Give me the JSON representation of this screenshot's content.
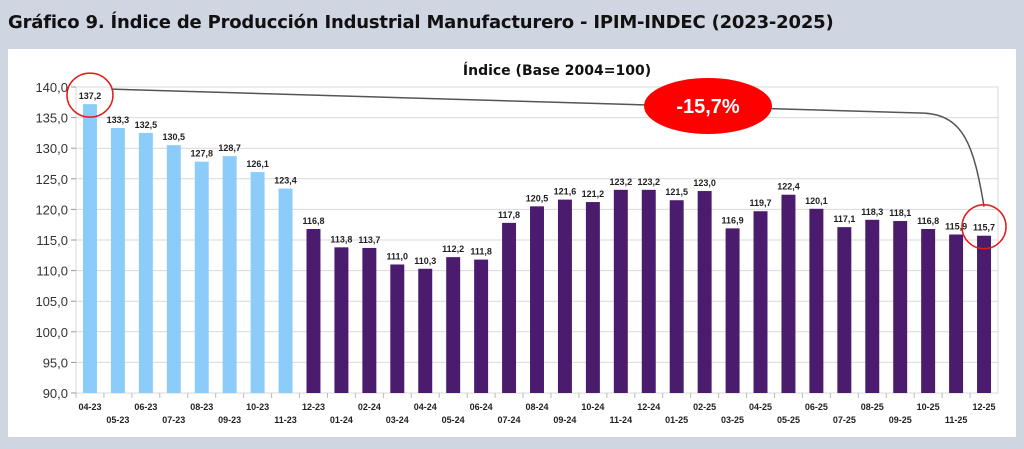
{
  "header": {
    "title": "Gráfico 9. Índice de Producción Industrial Manufacturero - IPIM-INDEC (2023-2025)"
  },
  "colors": {
    "bar_2023": "#8cccfa",
    "bar_2024_2025": "#4b1c6e",
    "callout": "#ff0000",
    "header_bg": "#cfd5e1"
  },
  "chart_data": {
    "type": "bar",
    "title": "Índice (Base 2004=100)",
    "xlabel": "",
    "ylabel": "",
    "ylim": [
      90,
      140
    ],
    "yticks": [
      90,
      95,
      100,
      105,
      110,
      115,
      120,
      125,
      130,
      135,
      140
    ],
    "ytick_labels": [
      "90,0",
      "95,0",
      "100,0",
      "105,0",
      "110,0",
      "115,0",
      "120,0",
      "125,0",
      "130,0",
      "135,0",
      "140,0"
    ],
    "grid": true,
    "legend": "none",
    "categories": [
      "04-23",
      "05-23",
      "06-23",
      "07-23",
      "08-23",
      "09-23",
      "10-23",
      "11-23",
      "12-23",
      "01-24",
      "02-24",
      "03-24",
      "04-24",
      "05-24",
      "06-24",
      "07-24",
      "08-24",
      "09-24",
      "10-24",
      "11-24",
      "12-24",
      "01-25",
      "02-25",
      "03-25",
      "04-25",
      "05-25",
      "06-25",
      "07-25",
      "08-25",
      "09-25",
      "10-25",
      "11-25",
      "12-25"
    ],
    "values": [
      137.2,
      133.3,
      132.5,
      130.5,
      127.8,
      128.7,
      126.1,
      123.4,
      116.8,
      113.8,
      113.7,
      111.0,
      110.3,
      112.2,
      111.8,
      117.8,
      120.5,
      121.6,
      121.2,
      123.2,
      123.2,
      121.5,
      123.0,
      116.9,
      119.7,
      122.4,
      120.1,
      117.1,
      118.3,
      118.1,
      116.8,
      115.9,
      115.7
    ],
    "value_labels": [
      "137,2",
      "133,3",
      "132,5",
      "130,5",
      "127,8",
      "128,7",
      "126,1",
      "123,4",
      "116,8",
      "113,8",
      "113,7",
      "111,0",
      "110,3",
      "112,2",
      "111,8",
      "117,8",
      "120,5",
      "121,6",
      "121,2",
      "123,2",
      "123,2",
      "121,5",
      "123,0",
      "116,9",
      "119,7",
      "122,4",
      "120,1",
      "117,1",
      "118,3",
      "118,1",
      "116,8",
      "115,9",
      "115,7"
    ],
    "highlight_count": 8,
    "annotations": [
      {
        "type": "callout",
        "text": "-15,7%",
        "from_category": "04-23",
        "to_category": "12-25"
      }
    ]
  }
}
